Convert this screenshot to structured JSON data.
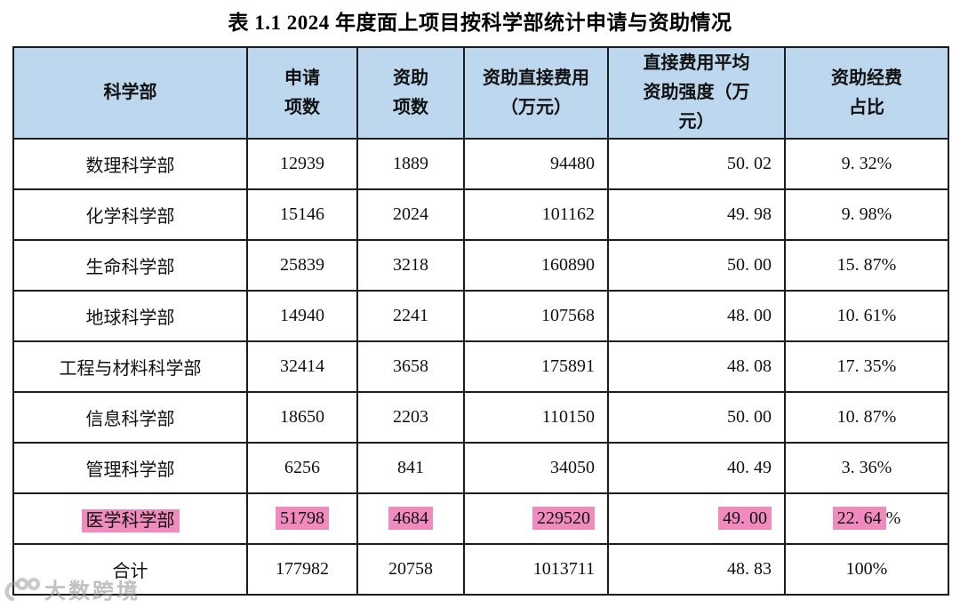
{
  "page": {
    "title": "表 1.1 2024 年度面上项目按科学部统计申请与资助情况"
  },
  "table": {
    "header_bg": "#BDD7EE",
    "highlight_color": "#F08BBD",
    "columns": [
      {
        "label": "科学部"
      },
      {
        "label": "申请\n项数"
      },
      {
        "label": "资助\n项数"
      },
      {
        "label": "资助直接费用\n（万元）"
      },
      {
        "label": "直接费用平均\n资助强度（万\n元）"
      },
      {
        "label": "资助经费\n占比"
      }
    ],
    "rows": [
      {
        "cells": [
          "数理科学部",
          "12939",
          "1889",
          "94480",
          "50. 02",
          "9. 32%"
        ],
        "highlight": false,
        "is_total": false
      },
      {
        "cells": [
          "化学科学部",
          "15146",
          "2024",
          "101162",
          "49. 98",
          "9. 98%"
        ],
        "highlight": false,
        "is_total": false
      },
      {
        "cells": [
          "生命科学部",
          "25839",
          "3218",
          "160890",
          "50. 00",
          "15. 87%"
        ],
        "highlight": false,
        "is_total": false
      },
      {
        "cells": [
          "地球科学部",
          "14940",
          "2241",
          "107568",
          "48. 00",
          "10. 61%"
        ],
        "highlight": false,
        "is_total": false
      },
      {
        "cells": [
          "工程与材料科学部",
          "32414",
          "3658",
          "175891",
          "48. 08",
          "17. 35%"
        ],
        "highlight": false,
        "is_total": false
      },
      {
        "cells": [
          "信息科学部",
          "18650",
          "2203",
          "110150",
          "50. 00",
          "10. 87%"
        ],
        "highlight": false,
        "is_total": false
      },
      {
        "cells": [
          "管理科学部",
          "6256",
          "841",
          "34050",
          "40. 49",
          "3. 36%"
        ],
        "highlight": false,
        "is_total": false
      },
      {
        "cells": [
          "医学科学部",
          "51798",
          "4684",
          "229520",
          "49. 00",
          "22. 64%"
        ],
        "highlight": true,
        "is_total": false
      },
      {
        "cells": [
          "合计",
          "177982",
          "20758",
          "1013711",
          "48. 83",
          "100%"
        ],
        "highlight": false,
        "is_total": true
      }
    ]
  },
  "watermark": {
    "text": "大数跨境",
    "icon": "dashu-100-logo"
  }
}
